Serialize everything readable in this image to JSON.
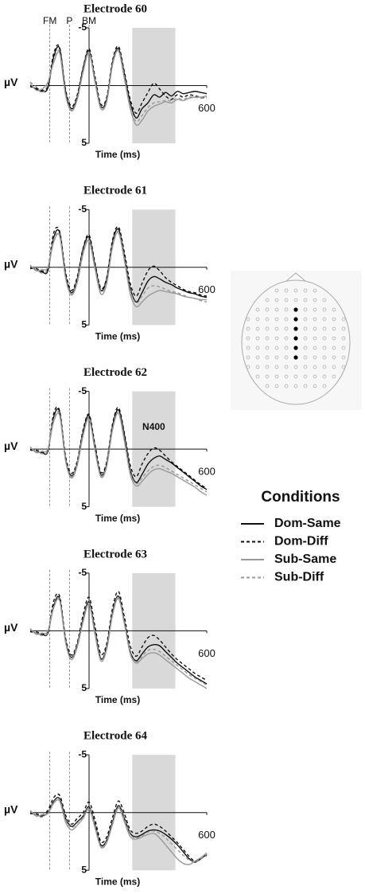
{
  "legend": {
    "title": "Conditions"
  },
  "chart_data": [
    {
      "type": "line",
      "title": "Electrode 60",
      "ylabel": "µV",
      "xlabel": "Time (ms)",
      "xlim": [
        -300,
        600
      ],
      "xticks": [
        600
      ],
      "ylim": [
        5,
        -5
      ],
      "yticks": [
        -5,
        5
      ],
      "window": [
        220,
        440
      ],
      "events": [
        {
          "x": -200,
          "label": "FM"
        },
        {
          "x": -100,
          "label": "P"
        },
        {
          "x": 0,
          "label": "BM"
        }
      ],
      "x": [
        -300,
        -270,
        -240,
        -210,
        -180,
        -150,
        -120,
        -90,
        -60,
        -30,
        0,
        30,
        60,
        90,
        120,
        150,
        180,
        210,
        240,
        270,
        300,
        330,
        360,
        390,
        420,
        450,
        480,
        510,
        540,
        570,
        600
      ],
      "series": [
        {
          "name": "Dom-Same",
          "color": "#111111",
          "dash": "solid",
          "values": [
            0,
            0.3,
            0.5,
            0.2,
            -2.5,
            -3.2,
            0.5,
            2.0,
            1.0,
            -1.5,
            -3.0,
            -0.5,
            1.8,
            1.2,
            -2.0,
            -3.2,
            -1.0,
            1.5,
            2.8,
            2.0,
            1.5,
            0.8,
            1.0,
            0.6,
            0.9,
            0.5,
            0.7,
            0.6,
            0.5,
            0.6,
            0.7
          ]
        },
        {
          "name": "Dom-Diff",
          "color": "#111111",
          "dash": "dashed",
          "values": [
            0.1,
            0.2,
            0.4,
            0.0,
            -2.8,
            -3.3,
            0.3,
            1.8,
            0.8,
            -1.6,
            -3.2,
            -0.8,
            1.6,
            1.0,
            -2.2,
            -3.4,
            -1.2,
            1.2,
            2.4,
            1.5,
            0.6,
            -0.2,
            0.3,
            0.9,
            1.2,
            0.8,
            1.0,
            0.8,
            0.9,
            1.0,
            1.1
          ]
        },
        {
          "name": "Sub-Same",
          "color": "#999999",
          "dash": "solid",
          "values": [
            -0.2,
            0.4,
            0.3,
            -0.3,
            -2.0,
            -2.8,
            0.8,
            2.2,
            1.2,
            -1.2,
            -2.8,
            -0.3,
            2.0,
            1.4,
            -1.8,
            -3.0,
            -0.6,
            2.0,
            3.4,
            3.0,
            2.2,
            1.8,
            1.6,
            1.4,
            1.5,
            1.2,
            1.3,
            1.1,
            1.0,
            1.0,
            0.9
          ]
        },
        {
          "name": "Sub-Diff",
          "color": "#999999",
          "dash": "dashed",
          "values": [
            -0.3,
            0.1,
            0.6,
            -0.1,
            -2.2,
            -2.9,
            0.7,
            2.1,
            1.1,
            -1.3,
            -2.9,
            -0.4,
            1.9,
            1.3,
            -1.9,
            -3.1,
            -0.8,
            1.8,
            3.1,
            2.6,
            1.9,
            1.5,
            1.4,
            1.3,
            1.3,
            1.1,
            1.2,
            1.0,
            1.0,
            1.1,
            1.0
          ]
        }
      ]
    },
    {
      "type": "line",
      "title": "Electrode 61",
      "ylabel": "µV",
      "xlabel": "Time (ms)",
      "xlim": [
        -300,
        600
      ],
      "xticks": [
        600
      ],
      "ylim": [
        5,
        -5
      ],
      "yticks": [
        -5,
        5
      ],
      "window": [
        220,
        440
      ],
      "events": [
        {
          "x": -200
        },
        {
          "x": -100
        }
      ],
      "x": [
        -300,
        -270,
        -240,
        -210,
        -180,
        -150,
        -120,
        -90,
        -60,
        -30,
        0,
        30,
        60,
        90,
        120,
        150,
        180,
        210,
        240,
        270,
        300,
        330,
        360,
        390,
        420,
        450,
        480,
        510,
        540,
        570,
        600
      ],
      "series": [
        {
          "name": "Dom-Same",
          "color": "#111111",
          "dash": "solid",
          "values": [
            0,
            0.2,
            0.4,
            0.3,
            -2.6,
            -3.0,
            0.6,
            2.2,
            1.0,
            -1.6,
            -2.6,
            -0.2,
            2.0,
            1.0,
            -2.2,
            -3.3,
            -1.0,
            1.8,
            3.0,
            2.2,
            1.2,
            0.8,
            1.0,
            1.3,
            1.5,
            1.8,
            2.0,
            2.2,
            2.3,
            2.5,
            2.6
          ]
        },
        {
          "name": "Dom-Diff",
          "color": "#111111",
          "dash": "dashed",
          "values": [
            0.1,
            0.1,
            0.3,
            0.1,
            -3.0,
            -3.1,
            0.4,
            2.0,
            0.8,
            -1.7,
            -2.8,
            -0.4,
            1.8,
            0.9,
            -2.4,
            -3.5,
            -1.3,
            1.4,
            2.5,
            1.4,
            0.3,
            -0.1,
            0.3,
            0.9,
            1.3,
            1.6,
            1.9,
            2.1,
            2.2,
            2.4,
            2.5
          ]
        },
        {
          "name": "Sub-Same",
          "color": "#999999",
          "dash": "solid",
          "values": [
            -0.2,
            0.3,
            0.2,
            0.0,
            -2.2,
            -2.7,
            0.9,
            2.4,
            1.3,
            -1.2,
            -2.3,
            0.1,
            2.3,
            1.4,
            -1.8,
            -3.0,
            -0.6,
            2.3,
            3.4,
            3.0,
            2.5,
            2.2,
            2.0,
            2.1,
            2.2,
            2.3,
            2.5,
            2.6,
            2.7,
            2.8,
            2.8
          ]
        },
        {
          "name": "Sub-Diff",
          "color": "#999999",
          "dash": "dashed",
          "values": [
            -0.1,
            0.2,
            0.5,
            0.1,
            -2.4,
            -2.8,
            0.8,
            2.3,
            1.1,
            -1.4,
            -2.4,
            0.0,
            2.1,
            1.2,
            -2.0,
            -3.1,
            -0.8,
            2.0,
            3.1,
            2.5,
            1.8,
            1.6,
            1.7,
            1.9,
            2.1,
            2.2,
            2.4,
            2.6,
            2.7,
            2.9,
            3.0
          ]
        }
      ]
    },
    {
      "type": "line",
      "title": "Electrode 62",
      "ylabel": "µV",
      "xlabel": "Time (ms)",
      "annotation": "N400",
      "xlim": [
        -300,
        600
      ],
      "xticks": [
        600
      ],
      "ylim": [
        5,
        -5
      ],
      "yticks": [
        -5,
        5
      ],
      "window": [
        220,
        440
      ],
      "events": [
        {
          "x": -200
        },
        {
          "x": -100
        }
      ],
      "x": [
        -300,
        -270,
        -240,
        -210,
        -180,
        -150,
        -120,
        -90,
        -60,
        -30,
        0,
        30,
        60,
        90,
        120,
        150,
        180,
        210,
        240,
        270,
        300,
        330,
        360,
        390,
        420,
        450,
        480,
        510,
        540,
        570,
        600
      ],
      "series": [
        {
          "name": "Dom-Same",
          "color": "#111111",
          "dash": "solid",
          "values": [
            0,
            0.2,
            0.3,
            0.2,
            -2.8,
            -3.2,
            0.8,
            2.3,
            1.2,
            -1.5,
            -2.9,
            -0.2,
            2.2,
            1.3,
            -2.0,
            -3.4,
            -1.2,
            1.8,
            2.9,
            2.2,
            1.3,
            0.8,
            0.6,
            0.9,
            1.2,
            1.6,
            2.0,
            2.4,
            2.8,
            3.2,
            3.5
          ]
        },
        {
          "name": "Dom-Diff",
          "color": "#111111",
          "dash": "dashed",
          "values": [
            0.1,
            0.1,
            0.2,
            0.1,
            -3.1,
            -3.3,
            0.6,
            2.1,
            1.0,
            -1.7,
            -3.0,
            -0.4,
            2.0,
            1.1,
            -2.2,
            -3.6,
            -1.4,
            1.4,
            2.4,
            1.3,
            0.4,
            -0.1,
            0.1,
            0.6,
            1.1,
            1.5,
            1.9,
            2.3,
            2.7,
            3.1,
            3.4
          ]
        },
        {
          "name": "Sub-Same",
          "color": "#999999",
          "dash": "solid",
          "values": [
            -0.2,
            0.3,
            0.2,
            0.0,
            -2.4,
            -2.9,
            1.0,
            2.5,
            1.4,
            -1.2,
            -2.6,
            0.1,
            2.4,
            1.5,
            -1.7,
            -3.1,
            -0.7,
            2.2,
            3.2,
            2.8,
            2.2,
            1.8,
            1.7,
            1.9,
            2.1,
            2.4,
            2.7,
            3.0,
            3.3,
            3.7,
            4.0
          ]
        },
        {
          "name": "Sub-Diff",
          "color": "#999999",
          "dash": "dashed",
          "values": [
            -0.1,
            0.2,
            0.4,
            0.1,
            -2.6,
            -3.0,
            0.9,
            2.4,
            1.2,
            -1.3,
            -2.7,
            0.0,
            2.3,
            1.4,
            -1.8,
            -3.2,
            -0.9,
            2.0,
            3.0,
            2.5,
            1.9,
            1.5,
            1.4,
            1.6,
            1.9,
            2.2,
            2.5,
            2.8,
            3.1,
            3.4,
            3.7
          ]
        }
      ]
    },
    {
      "type": "line",
      "title": "Electrode 63",
      "ylabel": "µV",
      "xlabel": "Time (ms)",
      "xlim": [
        -300,
        600
      ],
      "xticks": [
        600
      ],
      "ylim": [
        5,
        -5
      ],
      "yticks": [
        -5,
        5
      ],
      "window": [
        220,
        440
      ],
      "events": [
        {
          "x": -200
        },
        {
          "x": -100
        }
      ],
      "x": [
        -300,
        -270,
        -240,
        -210,
        -180,
        -150,
        -120,
        -90,
        -60,
        -30,
        0,
        30,
        60,
        90,
        120,
        150,
        180,
        210,
        240,
        270,
        300,
        330,
        360,
        390,
        420,
        450,
        480,
        510,
        540,
        570,
        600
      ],
      "series": [
        {
          "name": "Dom-Same",
          "color": "#111111",
          "dash": "solid",
          "values": [
            0,
            0.2,
            0.3,
            0.2,
            -2.2,
            -2.8,
            0.8,
            2.3,
            1.2,
            -1.0,
            -2.5,
            0.0,
            2.4,
            1.4,
            -1.6,
            -3.0,
            -0.8,
            1.8,
            2.6,
            2.0,
            1.4,
            1.2,
            1.3,
            1.8,
            2.3,
            2.8,
            3.2,
            3.6,
            4.0,
            4.3,
            4.6
          ]
        },
        {
          "name": "Dom-Diff",
          "color": "#111111",
          "dash": "dashed",
          "values": [
            0.1,
            0.1,
            0.2,
            0.1,
            -2.6,
            -3.0,
            0.6,
            2.1,
            1.0,
            -1.4,
            -2.9,
            -0.4,
            2.0,
            1.1,
            -2.0,
            -3.4,
            -1.2,
            1.3,
            2.2,
            1.4,
            0.6,
            0.4,
            0.8,
            1.4,
            2.0,
            2.5,
            2.9,
            3.3,
            3.7,
            4.0,
            4.3
          ]
        },
        {
          "name": "Sub-Same",
          "color": "#999999",
          "dash": "solid",
          "values": [
            -0.2,
            0.3,
            0.2,
            0.0,
            -2.0,
            -2.6,
            1.0,
            2.5,
            1.4,
            -0.8,
            -2.3,
            0.3,
            2.6,
            1.6,
            -1.4,
            -2.8,
            -0.6,
            2.0,
            2.8,
            2.4,
            2.0,
            1.9,
            2.1,
            2.5,
            2.9,
            3.3,
            3.7,
            4.1,
            4.4,
            4.7,
            5.0
          ]
        },
        {
          "name": "Sub-Diff",
          "color": "#999999",
          "dash": "dashed",
          "values": [
            -0.1,
            0.2,
            0.4,
            0.1,
            -2.1,
            -2.7,
            0.9,
            2.4,
            1.2,
            -0.9,
            -2.4,
            0.1,
            2.5,
            1.5,
            -1.5,
            -2.9,
            -0.7,
            1.9,
            2.7,
            2.2,
            1.7,
            1.6,
            1.8,
            2.2,
            2.6,
            3.0,
            3.4,
            3.8,
            4.1,
            4.4,
            4.7
          ]
        }
      ]
    },
    {
      "type": "line",
      "title": "Electrode 64",
      "ylabel": "µV",
      "xlabel": "Time (ms)",
      "xlim": [
        -300,
        600
      ],
      "xticks": [
        600
      ],
      "ylim": [
        5,
        -5
      ],
      "yticks": [
        -5,
        5
      ],
      "window": [
        220,
        440
      ],
      "events": [
        {
          "x": -200
        },
        {
          "x": -100
        }
      ],
      "x": [
        -300,
        -270,
        -240,
        -210,
        -180,
        -150,
        -120,
        -90,
        -60,
        -30,
        0,
        30,
        60,
        90,
        120,
        150,
        180,
        210,
        240,
        270,
        300,
        330,
        360,
        390,
        420,
        450,
        480,
        510,
        540,
        570,
        600
      ],
      "series": [
        {
          "name": "Dom-Same",
          "color": "#111111",
          "dash": "solid",
          "values": [
            0,
            0.2,
            0.3,
            0.0,
            -1.0,
            -1.2,
            0.5,
            1.2,
            0.8,
            0.3,
            -0.5,
            1.0,
            2.8,
            2.4,
            0.8,
            -0.6,
            0.5,
            1.8,
            2.1,
            1.9,
            1.6,
            1.5,
            1.6,
            1.9,
            2.3,
            2.8,
            3.4,
            4.0,
            4.3,
            4.0,
            3.6
          ]
        },
        {
          "name": "Dom-Diff",
          "color": "#111111",
          "dash": "dashed",
          "values": [
            0.1,
            0.1,
            0.2,
            -0.2,
            -1.3,
            -1.5,
            0.2,
            1.0,
            0.5,
            0.0,
            -0.9,
            0.6,
            2.5,
            2.1,
            0.4,
            -1.0,
            0.1,
            1.5,
            1.8,
            1.6,
            1.2,
            1.0,
            1.2,
            1.6,
            2.1,
            2.6,
            3.2,
            3.8,
            4.2,
            4.0,
            3.7
          ]
        },
        {
          "name": "Sub-Same",
          "color": "#999999",
          "dash": "solid",
          "values": [
            -0.2,
            0.3,
            0.2,
            0.1,
            -0.8,
            -1.0,
            0.8,
            1.5,
            1.1,
            0.5,
            -0.3,
            1.3,
            3.0,
            2.6,
            1.0,
            -0.4,
            0.8,
            2.1,
            2.3,
            2.1,
            1.9,
            1.8,
            2.2,
            2.8,
            3.4,
            4.0,
            4.4,
            4.5,
            4.2,
            3.9,
            3.5
          ]
        },
        {
          "name": "Sub-Diff",
          "color": "#999999",
          "dash": "dashed",
          "values": [
            -0.1,
            0.2,
            0.4,
            0.0,
            -0.9,
            -1.1,
            0.6,
            1.3,
            0.9,
            0.4,
            -0.4,
            1.1,
            2.9,
            2.5,
            0.9,
            -0.5,
            0.6,
            1.9,
            2.2,
            2.0,
            1.7,
            1.6,
            1.8,
            2.2,
            2.7,
            3.2,
            3.7,
            4.1,
            4.3,
            4.0,
            3.6
          ]
        }
      ]
    }
  ]
}
